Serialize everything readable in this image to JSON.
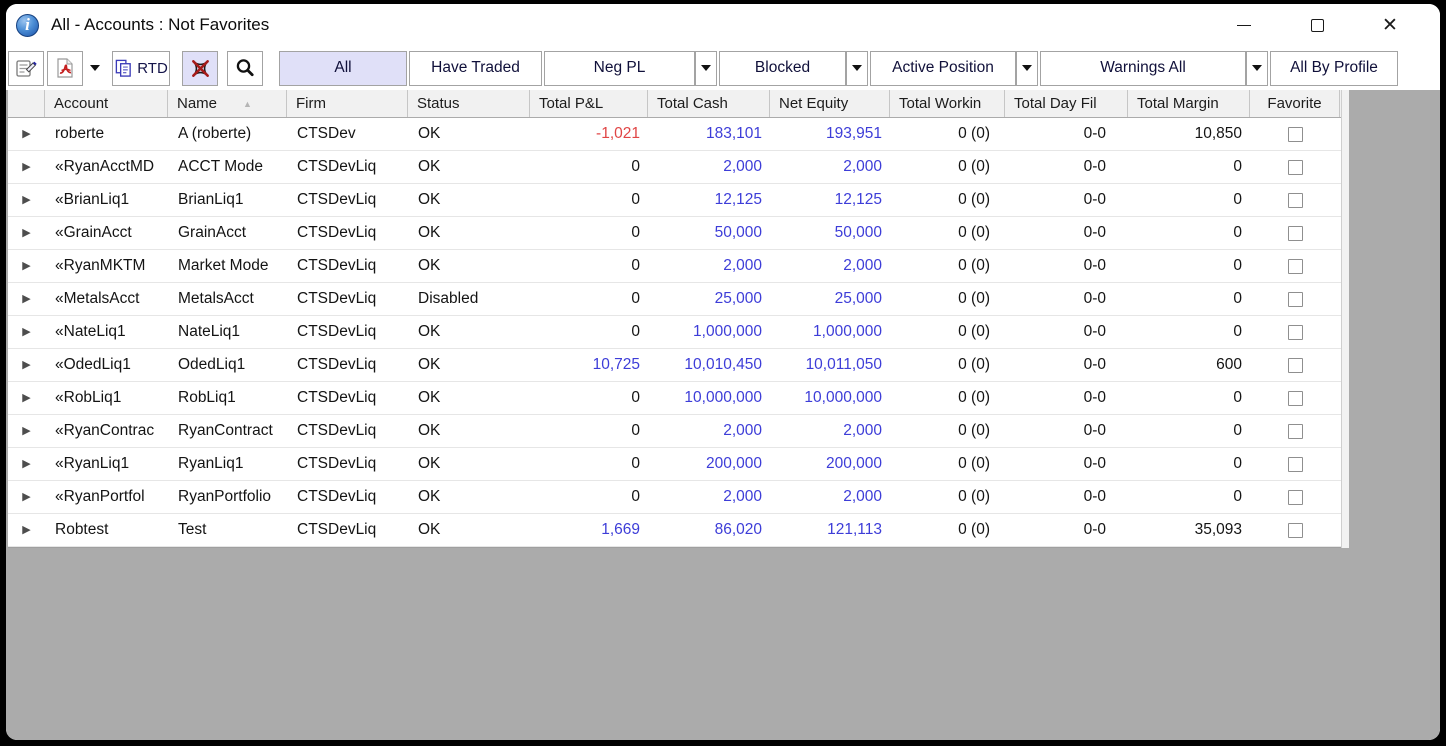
{
  "window": {
    "title": "All - Accounts : Not Favorites"
  },
  "toolbar": {
    "rtd_label": "RTD",
    "filters": [
      {
        "label": "All",
        "selected": true,
        "dropdown": false
      },
      {
        "label": "Have Traded",
        "selected": false,
        "dropdown": false
      },
      {
        "label": "Neg PL",
        "selected": false,
        "dropdown": true
      },
      {
        "label": "Blocked",
        "selected": false,
        "dropdown": true
      },
      {
        "label": "Active Position",
        "selected": false,
        "dropdown": true
      },
      {
        "label": "Warnings All",
        "selected": false,
        "dropdown": true
      },
      {
        "label": "All By Profile",
        "selected": false,
        "dropdown": false
      }
    ]
  },
  "table": {
    "columns": [
      {
        "key": "expander",
        "label": "",
        "cls": "c-arrow"
      },
      {
        "key": "account",
        "label": "Account",
        "cls": "c-account"
      },
      {
        "key": "name",
        "label": "Name",
        "cls": "c-name",
        "sort": "asc"
      },
      {
        "key": "firm",
        "label": "Firm",
        "cls": "c-firm"
      },
      {
        "key": "status",
        "label": "Status",
        "cls": "c-status"
      },
      {
        "key": "total-pl",
        "label": "Total P&L",
        "cls": "c-pl"
      },
      {
        "key": "total-cash",
        "label": "Total Cash",
        "cls": "c-cash"
      },
      {
        "key": "net-equity",
        "label": "Net Equity",
        "cls": "c-equity"
      },
      {
        "key": "total-working",
        "label": "Total Workin",
        "cls": "c-working"
      },
      {
        "key": "total-day-fill",
        "label": "Total Day Fil",
        "cls": "c-dayfill"
      },
      {
        "key": "total-margin",
        "label": "Total Margin",
        "cls": "c-margin"
      },
      {
        "key": "favorite",
        "label": "Favorite",
        "cls": "c-fav"
      }
    ],
    "rows": [
      {
        "account": "roberte",
        "name": "A (roberte)",
        "firm": "CTSDev",
        "status": "OK",
        "pl": "-1,021",
        "cash": "183,101",
        "equity": "193,951",
        "working": "0 (0)",
        "dayfill": "0-0",
        "margin": "10,850",
        "favorite": false
      },
      {
        "account": "«RyanAcctMD",
        "name": "ACCT Mode",
        "firm": "CTSDevLiq",
        "status": "OK",
        "pl": "0",
        "cash": "2,000",
        "equity": "2,000",
        "working": "0 (0)",
        "dayfill": "0-0",
        "margin": "0",
        "favorite": false
      },
      {
        "account": "«BrianLiq1",
        "name": "BrianLiq1",
        "firm": "CTSDevLiq",
        "status": "OK",
        "pl": "0",
        "cash": "12,125",
        "equity": "12,125",
        "working": "0 (0)",
        "dayfill": "0-0",
        "margin": "0",
        "favorite": false
      },
      {
        "account": "«GrainAcct",
        "name": "GrainAcct",
        "firm": "CTSDevLiq",
        "status": "OK",
        "pl": "0",
        "cash": "50,000",
        "equity": "50,000",
        "working": "0 (0)",
        "dayfill": "0-0",
        "margin": "0",
        "favorite": false
      },
      {
        "account": "«RyanMKTM",
        "name": "Market Mode",
        "firm": "CTSDevLiq",
        "status": "OK",
        "pl": "0",
        "cash": "2,000",
        "equity": "2,000",
        "working": "0 (0)",
        "dayfill": "0-0",
        "margin": "0",
        "favorite": false
      },
      {
        "account": "«MetalsAcct",
        "name": "MetalsAcct",
        "firm": "CTSDevLiq",
        "status": "Disabled",
        "pl": "0",
        "cash": "25,000",
        "equity": "25,000",
        "working": "0 (0)",
        "dayfill": "0-0",
        "margin": "0",
        "favorite": false
      },
      {
        "account": "«NateLiq1",
        "name": "NateLiq1",
        "firm": "CTSDevLiq",
        "status": "OK",
        "pl": "0",
        "cash": "1,000,000",
        "equity": "1,000,000",
        "working": "0 (0)",
        "dayfill": "0-0",
        "margin": "0",
        "favorite": false
      },
      {
        "account": "«OdedLiq1",
        "name": "OdedLiq1",
        "firm": "CTSDevLiq",
        "status": "OK",
        "pl": "10,725",
        "cash": "10,010,450",
        "equity": "10,011,050",
        "working": "0 (0)",
        "dayfill": "0-0",
        "margin": "600",
        "favorite": false
      },
      {
        "account": "«RobLiq1",
        "name": "RobLiq1",
        "firm": "CTSDevLiq",
        "status": "OK",
        "pl": "0",
        "cash": "10,000,000",
        "equity": "10,000,000",
        "working": "0 (0)",
        "dayfill": "0-0",
        "margin": "0",
        "favorite": false
      },
      {
        "account": "«RyanContrac",
        "name": "RyanContract",
        "firm": "CTSDevLiq",
        "status": "OK",
        "pl": "0",
        "cash": "2,000",
        "equity": "2,000",
        "working": "0 (0)",
        "dayfill": "0-0",
        "margin": "0",
        "favorite": false
      },
      {
        "account": "«RyanLiq1",
        "name": "RyanLiq1",
        "firm": "CTSDevLiq",
        "status": "OK",
        "pl": "0",
        "cash": "200,000",
        "equity": "200,000",
        "working": "0 (0)",
        "dayfill": "0-0",
        "margin": "0",
        "favorite": false
      },
      {
        "account": "«RyanPortfol",
        "name": "RyanPortfolio",
        "firm": "CTSDevLiq",
        "status": "OK",
        "pl": "0",
        "cash": "2,000",
        "equity": "2,000",
        "working": "0 (0)",
        "dayfill": "0-0",
        "margin": "0",
        "favorite": false
      },
      {
        "account": "Robtest",
        "name": "Test",
        "firm": "CTSDevLiq",
        "status": "OK",
        "pl": "1,669",
        "cash": "86,020",
        "equity": "121,113",
        "working": "0 (0)",
        "dayfill": "0-0",
        "margin": "35,093",
        "favorite": false
      }
    ]
  },
  "icons": {
    "info": "blue-circle-i",
    "properties": "form-with-pen",
    "pdf_export": "adobe-pdf-page",
    "copy_rtd": "double-page-copy",
    "exclude_filter": "red-x-crossed",
    "search": "magnifier",
    "dropdown": "▼",
    "expand_row": "▶",
    "sort_ascending": "▲",
    "minimize": "—",
    "maximize": "□",
    "close": "✕"
  },
  "colors": {
    "value_blue": "#3d3dd8",
    "value_negative": "#e04545",
    "selected_bg": "#e0e0f8",
    "header_bg": "#f1f1f1",
    "desk_bg": "#ababab"
  }
}
